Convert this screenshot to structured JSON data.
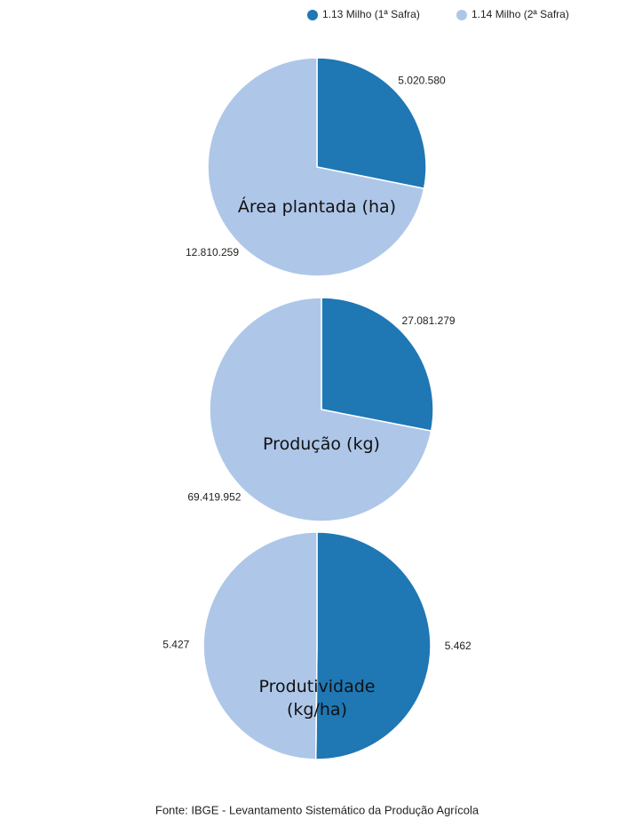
{
  "legend": [
    "1.13 Milho (1ª Safra)",
    "1.14 Milho (2ª Safra)"
  ],
  "colors": [
    "#1f77b4",
    "#aec7e8"
  ],
  "chart_data": [
    {
      "type": "pie",
      "title": "Área plantada (ha)",
      "values": [
        5020580,
        12810259
      ],
      "value_labels": [
        "5.020.580",
        "12.810.259"
      ]
    },
    {
      "type": "pie",
      "title": "Produção (kg)",
      "values": [
        27081279,
        69419952
      ],
      "value_labels": [
        "27.081.279",
        "69.419.952"
      ]
    },
    {
      "type": "pie",
      "title": "Produtividade (kg/ha)",
      "values": [
        5462,
        5427
      ],
      "value_labels": [
        "5.462",
        "5.427"
      ]
    }
  ],
  "source": "Fonte: IBGE - Levantamento Sistemático da Produção Agrícola"
}
